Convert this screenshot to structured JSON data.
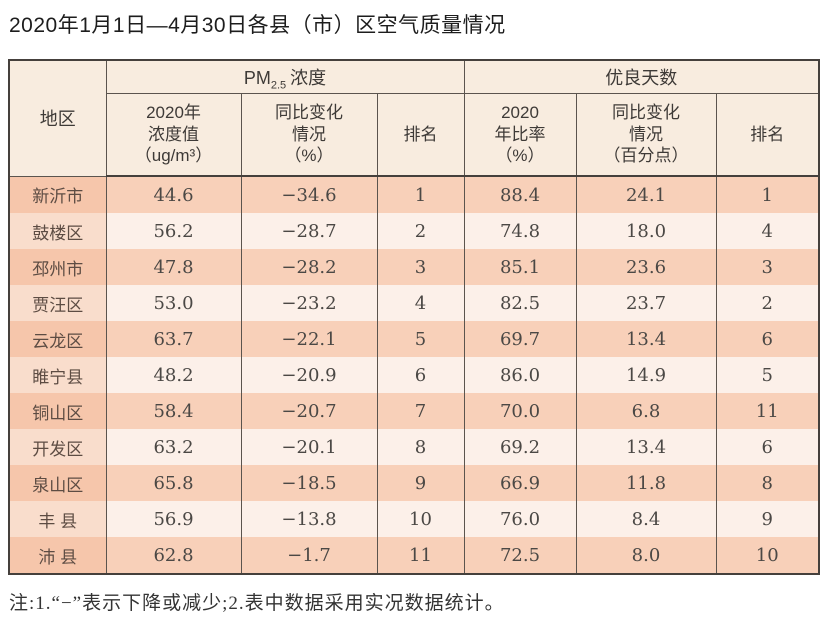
{
  "title": "2020年1月1日—4月30日各县（市）区空气质量情况",
  "footnote": "注:1.“−”表示下降或减少;2.表中数据采用实况数据统计。",
  "colors": {
    "header_bg": "#f8ecdf",
    "header_text": "#3e3a37",
    "row_odd": "#f8d0b9",
    "row_even": "#fcf0e9",
    "region_odd": "#f6c6ab",
    "region_even": "#f9ddcc",
    "region_text": "#5d4c43",
    "num_text": "#4b4845",
    "border_dark": "#45403c",
    "border_line": "#5b544e"
  },
  "table": {
    "group_pm": {
      "pm": "PM",
      "sub": "2.5",
      "label": "浓度"
    },
    "group_good": "优良天数",
    "columns": {
      "region": "地区",
      "pm_value": "2020年\n浓度值\n（ug/m³）",
      "pm_change": "同比变化\n情况\n（%）",
      "pm_rank": "排名",
      "good_rate": "2020\n年比率\n（%）",
      "good_change": "同比变化\n情况\n（百分点）",
      "good_rank": "排名"
    },
    "rows": [
      {
        "region": "新沂市",
        "pm_value": "44.6",
        "pm_change": "−34.6",
        "pm_rank": "1",
        "good_rate": "88.4",
        "good_change": "24.1",
        "good_rank": "1"
      },
      {
        "region": "鼓楼区",
        "pm_value": "56.2",
        "pm_change": "−28.7",
        "pm_rank": "2",
        "good_rate": "74.8",
        "good_change": "18.0",
        "good_rank": "4"
      },
      {
        "region": "邳州市",
        "pm_value": "47.8",
        "pm_change": "−28.2",
        "pm_rank": "3",
        "good_rate": "85.1",
        "good_change": "23.6",
        "good_rank": "3"
      },
      {
        "region": "贾汪区",
        "pm_value": "53.0",
        "pm_change": "−23.2",
        "pm_rank": "4",
        "good_rate": "82.5",
        "good_change": "23.7",
        "good_rank": "2"
      },
      {
        "region": "云龙区",
        "pm_value": "63.7",
        "pm_change": "−22.1",
        "pm_rank": "5",
        "good_rate": "69.7",
        "good_change": "13.4",
        "good_rank": "6"
      },
      {
        "region": "睢宁县",
        "pm_value": "48.2",
        "pm_change": "−20.9",
        "pm_rank": "6",
        "good_rate": "86.0",
        "good_change": "14.9",
        "good_rank": "5"
      },
      {
        "region": "铜山区",
        "pm_value": "58.4",
        "pm_change": "−20.7",
        "pm_rank": "7",
        "good_rate": "70.0",
        "good_change": "6.8",
        "good_rank": "11"
      },
      {
        "region": "开发区",
        "pm_value": "63.2",
        "pm_change": "−20.1",
        "pm_rank": "8",
        "good_rate": "69.2",
        "good_change": "13.4",
        "good_rank": "6"
      },
      {
        "region": "泉山区",
        "pm_value": "65.8",
        "pm_change": "−18.5",
        "pm_rank": "9",
        "good_rate": "66.9",
        "good_change": "11.8",
        "good_rank": "8"
      },
      {
        "region": "丰 县",
        "pm_value": "56.9",
        "pm_change": "−13.8",
        "pm_rank": "10",
        "good_rate": "76.0",
        "good_change": "8.4",
        "good_rank": "9"
      },
      {
        "region": "沛 县",
        "pm_value": "62.8",
        "pm_change": "−1.7",
        "pm_rank": "11",
        "good_rate": "72.5",
        "good_change": "8.0",
        "good_rank": "10"
      }
    ]
  }
}
